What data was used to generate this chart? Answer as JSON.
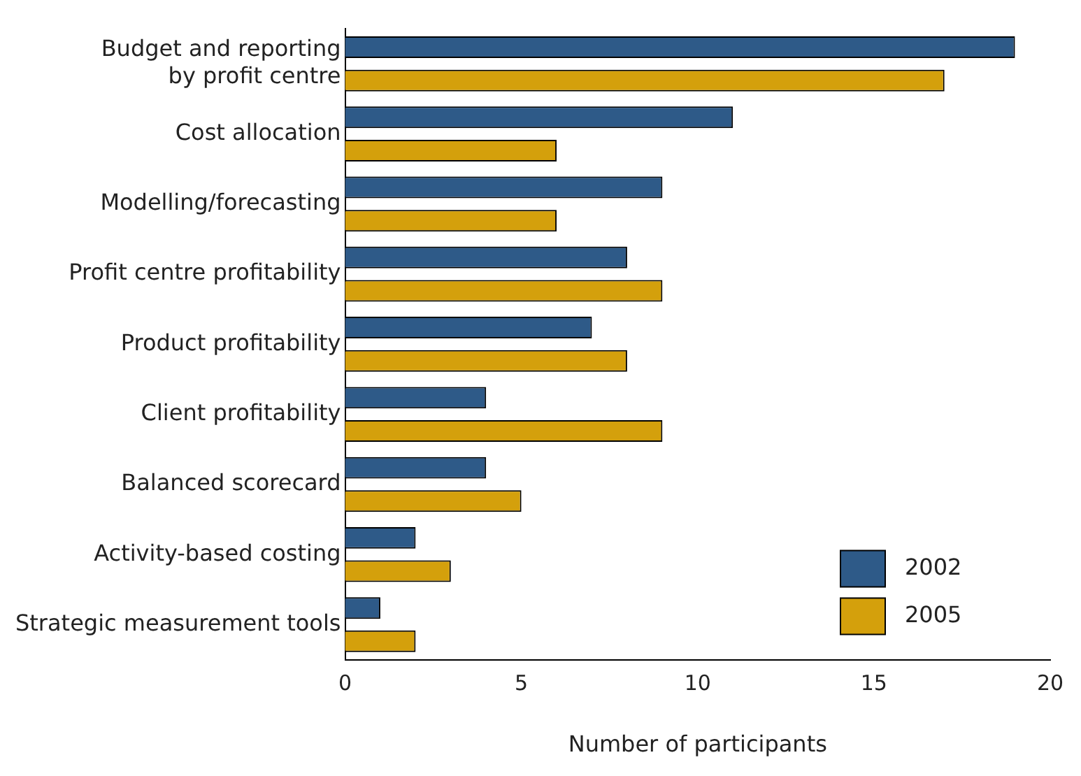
{
  "chart_data": {
    "type": "bar",
    "orientation": "horizontal",
    "xlabel": "Number of participants",
    "categories": [
      "Budget and reporting\nby profit centre",
      "Cost allocation",
      "Modelling/forecasting",
      "Profit centre profitability",
      "Product profitability",
      "Client profitability",
      "Balanced scorecard",
      "Activity-based costing",
      "Strategic measurement tools"
    ],
    "series": [
      {
        "name": "2002",
        "color": "#2e5a88",
        "values": [
          19,
          11,
          9,
          8,
          7,
          4,
          4,
          2,
          1
        ]
      },
      {
        "name": "2005",
        "color": "#d4a00c",
        "values": [
          17,
          6,
          6,
          9,
          8,
          9,
          5,
          3,
          2
        ]
      }
    ],
    "xlim": [
      0,
      20
    ],
    "xticks": [
      0,
      5,
      10,
      15,
      20
    ],
    "grid": false,
    "legend": "bottom right"
  }
}
